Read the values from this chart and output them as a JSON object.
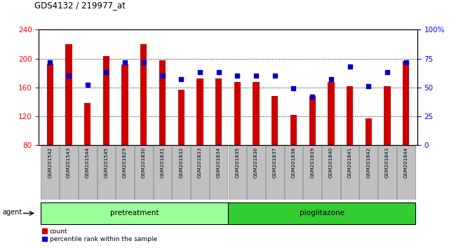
{
  "title": "GDS4132 / 219977_at",
  "samples": [
    "GSM201542",
    "GSM201543",
    "GSM201544",
    "GSM201545",
    "GSM201829",
    "GSM201830",
    "GSM201831",
    "GSM201832",
    "GSM201833",
    "GSM201834",
    "GSM201835",
    "GSM201836",
    "GSM201837",
    "GSM201838",
    "GSM201839",
    "GSM201840",
    "GSM201841",
    "GSM201842",
    "GSM201843",
    "GSM201844"
  ],
  "counts": [
    193,
    220,
    138,
    204,
    192,
    220,
    198,
    157,
    172,
    172,
    168,
    168,
    148,
    122,
    148,
    168,
    162,
    117,
    162,
    197
  ],
  "percentiles": [
    72,
    60,
    52,
    63,
    72,
    72,
    60,
    57,
    63,
    63,
    60,
    60,
    60,
    49,
    42,
    57,
    68,
    51,
    63,
    72
  ],
  "pretreatment_count": 10,
  "pioglitazone_count": 10,
  "ylim_left": [
    80,
    240
  ],
  "ylim_right": [
    0,
    100
  ],
  "yticks_left": [
    80,
    120,
    160,
    200,
    240
  ],
  "yticks_right": [
    0,
    25,
    50,
    75,
    100
  ],
  "ytick_labels_right": [
    "0",
    "25",
    "50",
    "75",
    "100%"
  ],
  "bar_color": "#cc0000",
  "dot_color": "#0000cc",
  "bg_color": "#ffffff",
  "tick_bg": "#c0c0c0",
  "pretreat_color": "#99ff99",
  "pioglit_color": "#33cc33",
  "agent_label": "agent",
  "pretreat_label": "pretreatment",
  "pioglit_label": "pioglitazone",
  "legend_count": "count",
  "legend_pct": "percentile rank within the sample",
  "bar_width": 0.35
}
